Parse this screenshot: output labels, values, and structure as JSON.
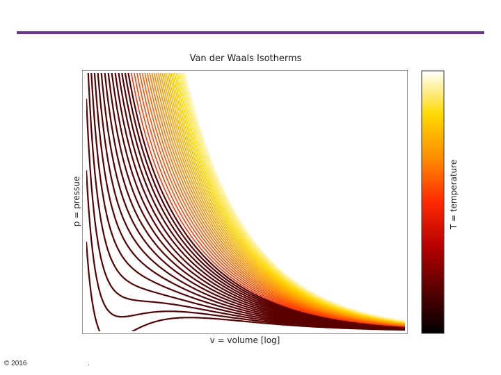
{
  "slide": {
    "rule_color": "#6b2fa0",
    "copyright": "© 2016",
    "footer_mark": "."
  },
  "chart_data": {
    "type": "line",
    "title": "Van der Waals Isotherms",
    "xlabel": "v = volume [log]",
    "ylabel": "p = pressue",
    "colorbar_label": "T = temperature",
    "x_scale": "log",
    "axis_ticks": "none",
    "grid": false,
    "colormap": [
      "#000000",
      "#5a0000",
      "#b80000",
      "#ff2a00",
      "#ff8c00",
      "#ffd900",
      "#ffffff"
    ],
    "isotherm_color_low": "#5a0000",
    "series_count": 44,
    "description_model": "Van der Waals isotherms p = 8T/(3v-1) - 3/v^2 in reduced units",
    "T_range": [
      0.8,
      6.0
    ],
    "v_range": [
      0.45,
      40
    ],
    "p_range": [
      0.0,
      10.0
    ]
  }
}
